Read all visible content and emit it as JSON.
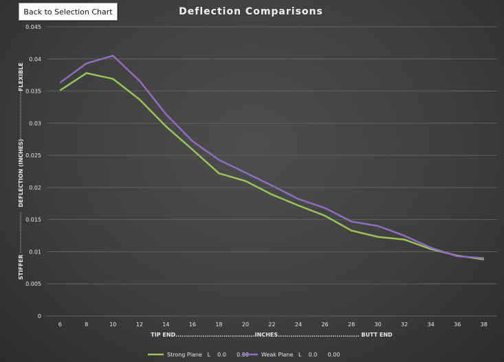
{
  "back_button": {
    "label": "Back to Selection Chart"
  },
  "chart_data": {
    "type": "line",
    "title": "Deflection Comparisons",
    "ylabel": "DEFLECTION (INCHES)",
    "ylabel_top": "FLEXIBLE",
    "ylabel_bottom": "STIFFER",
    "xlabel": "TIP END......................................INCHES....................................... BUTT END",
    "x": [
      6,
      8,
      10,
      12,
      14,
      16,
      18,
      20,
      22,
      24,
      26,
      28,
      30,
      32,
      34,
      36,
      38
    ],
    "ylim": [
      0,
      0.045
    ],
    "yticks": [
      "0",
      "0.005",
      "0.01",
      "0.015",
      "0.02",
      "0.025",
      "0.03",
      "0.035",
      "0.04",
      "0.045"
    ],
    "grid": true,
    "legend_position": "bottom",
    "series": [
      {
        "name": "Strong Plane   L    0.0      0.00",
        "color": "#9bc35a",
        "values": [
          0.0351,
          0.0378,
          0.0369,
          0.0337,
          0.0295,
          0.0259,
          0.0222,
          0.021,
          0.0189,
          0.0172,
          0.0156,
          0.0133,
          0.0123,
          0.0119,
          0.0104,
          0.0094,
          0.0088
        ]
      },
      {
        "name": "Weak Plane   L    0.0      0.00",
        "color": "#8e6fbf",
        "values": [
          0.0363,
          0.0393,
          0.0405,
          0.0366,
          0.0314,
          0.0272,
          0.0243,
          0.0223,
          0.0203,
          0.0182,
          0.0168,
          0.0147,
          0.014,
          0.0125,
          0.0106,
          0.0093,
          0.009
        ]
      }
    ]
  }
}
